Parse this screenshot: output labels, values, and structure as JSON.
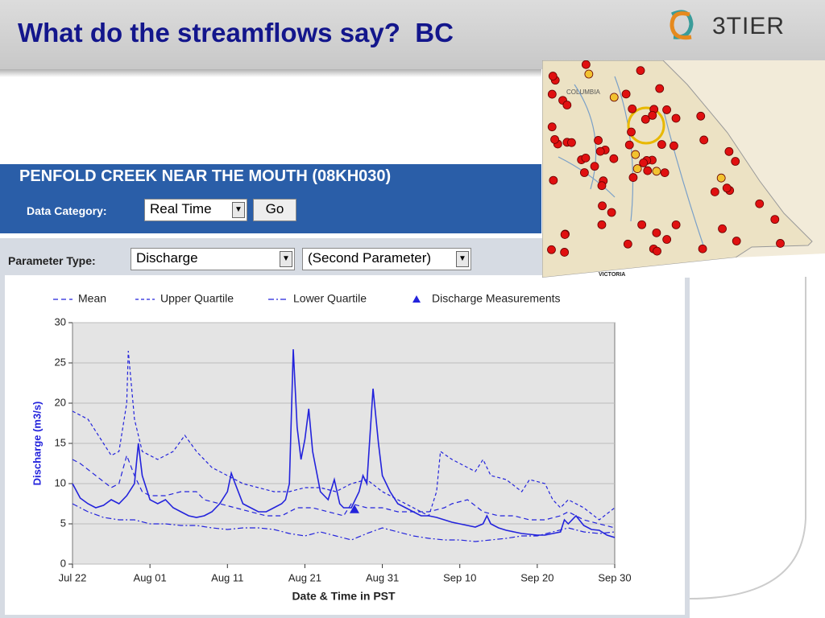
{
  "slide": {
    "title": "What do the streamflows say?  BC",
    "logo": "3TIER"
  },
  "station": {
    "title": "PENFOLD CREEK NEAR THE MOUTH (08KH030)",
    "category_label": "Data Category:",
    "category_value": "Real Time",
    "go": "Go",
    "parameter_label": "Parameter Type:",
    "parameter_value": "Discharge",
    "second_parameter": "(Second Parameter)"
  },
  "map": {
    "labels": [
      "COLUMBIA",
      "VICTORIA"
    ]
  },
  "chart_data": {
    "type": "line",
    "xlabel": "Date & Time in PST",
    "ylabel": "Discharge (m3/s)",
    "xlim": [
      0,
      70
    ],
    "ylim": [
      0,
      30
    ],
    "grid": true,
    "xticks": [
      {
        "value": 0,
        "label": "Jul 22"
      },
      {
        "value": 10,
        "label": "Aug 01"
      },
      {
        "value": 20,
        "label": "Aug 11"
      },
      {
        "value": 30,
        "label": "Aug 21"
      },
      {
        "value": 40,
        "label": "Aug 31"
      },
      {
        "value": 50,
        "label": "Sep 10"
      },
      {
        "value": 60,
        "label": "Sep 20"
      },
      {
        "value": 70,
        "label": "Sep 30"
      }
    ],
    "yticks": [
      0,
      5,
      10,
      15,
      20,
      25,
      30
    ],
    "series": [
      {
        "color": "#2323dc",
        "dash": "none",
        "x": [
          0,
          1,
          2,
          3,
          4,
          5,
          6,
          7,
          8,
          8.5,
          9,
          10,
          11,
          12,
          13,
          14,
          15,
          16,
          17,
          18,
          19,
          20,
          20.5,
          21,
          22,
          23,
          24,
          25,
          26,
          27,
          27.5,
          28,
          28.5,
          29,
          29.5,
          30,
          30.5,
          31,
          32,
          33,
          33.8,
          34.5,
          35,
          36,
          37,
          37.5,
          38,
          38.8,
          39.5,
          40,
          41,
          42,
          43,
          44,
          45,
          46,
          47,
          48,
          49,
          50,
          51,
          52,
          53,
          53.5,
          54,
          55,
          56,
          57,
          58,
          59,
          60,
          61,
          62,
          63,
          63.5,
          64,
          65,
          66,
          67,
          68,
          69,
          70
        ],
        "values": [
          10,
          8.2,
          7.5,
          7,
          7.3,
          8,
          7.5,
          8.5,
          10,
          15,
          11,
          8,
          7.5,
          8,
          7,
          6.5,
          6,
          5.8,
          6,
          6.5,
          7.5,
          9,
          11.3,
          10,
          7.5,
          7,
          6.5,
          6.5,
          7,
          7.5,
          8,
          10,
          26.7,
          17,
          13,
          15.5,
          19.3,
          14,
          9,
          8,
          10.5,
          7.5,
          7,
          7,
          9,
          11,
          10,
          21.8,
          15,
          11,
          9,
          7.5,
          7,
          6.5,
          6,
          6,
          5.8,
          5.5,
          5.2,
          5,
          4.8,
          4.6,
          5,
          6,
          5,
          4.5,
          4.2,
          4,
          3.8,
          3.7,
          3.6,
          3.6,
          3.8,
          4,
          5.5,
          5,
          6,
          4.8,
          4.3,
          4.2,
          3.6,
          3.3
        ]
      },
      {
        "name": "Mean",
        "color": "#2323dc",
        "dash": "6,4",
        "x": [
          0,
          1,
          3,
          5,
          6,
          7,
          8,
          9,
          10,
          12,
          14,
          16,
          17,
          19,
          21,
          23,
          25,
          27,
          29,
          31,
          33,
          35,
          36,
          38,
          40,
          42,
          44,
          46,
          48,
          49,
          51,
          53,
          55,
          57,
          59,
          61,
          63,
          64,
          66,
          68,
          70
        ],
        "values": [
          13,
          12.5,
          11,
          9.5,
          10,
          13.5,
          11,
          9,
          8.5,
          8.5,
          9,
          9,
          8,
          7.5,
          7,
          6.5,
          6,
          6,
          7,
          7,
          6.5,
          6,
          7.5,
          7,
          7,
          6.5,
          6.5,
          6.5,
          7,
          7.5,
          8,
          6.5,
          6,
          6,
          5.5,
          5.5,
          6,
          6.5,
          5.5,
          5,
          4.5
        ]
      },
      {
        "name": "Upper Quartile",
        "color": "#2323dc",
        "dash": "4,3",
        "x": [
          0,
          2,
          4,
          5,
          6,
          7,
          7.2,
          8,
          9,
          11,
          13,
          14.5,
          16,
          18,
          20,
          22,
          24,
          26,
          28,
          30,
          32,
          34,
          36,
          38,
          40,
          42,
          44,
          46,
          47,
          47.5,
          49,
          51,
          52,
          53,
          54,
          56,
          58,
          59,
          61,
          62,
          63,
          64,
          66,
          68,
          70
        ],
        "values": [
          19,
          18,
          15,
          13.5,
          14,
          20,
          26.5,
          18,
          14,
          13,
          14,
          16,
          14,
          12,
          11,
          10,
          9.5,
          9,
          9,
          9.5,
          9.5,
          9,
          10,
          10.5,
          9,
          8,
          7,
          6,
          9,
          14,
          13,
          12,
          11.5,
          13,
          11,
          10.5,
          9,
          10.5,
          10,
          8,
          7,
          8,
          7,
          5.5,
          7
        ]
      },
      {
        "name": "Lower Quartile",
        "color": "#2323dc",
        "dash": "7,3,2,3",
        "x": [
          0,
          2,
          4,
          6,
          8,
          10,
          12,
          14,
          16,
          18,
          20,
          22,
          24,
          26,
          28,
          30,
          32,
          34,
          36,
          38,
          40,
          42,
          44,
          46,
          48,
          50,
          52,
          54,
          56,
          58,
          60,
          62,
          64,
          66,
          68,
          70
        ],
        "values": [
          7.5,
          6.5,
          5.8,
          5.5,
          5.5,
          5,
          5,
          4.8,
          4.8,
          4.5,
          4.3,
          4.5,
          4.5,
          4.3,
          3.8,
          3.5,
          4,
          3.5,
          3,
          3.8,
          4.5,
          4,
          3.5,
          3.2,
          3,
          3,
          2.8,
          3,
          3.2,
          3.5,
          3.5,
          4,
          4.5,
          4,
          3.8,
          4
        ]
      },
      {
        "name": "Discharge Measurements",
        "color": "#2323dc",
        "marker": "triangle",
        "x": [
          36.4
        ],
        "values": [
          6.8
        ]
      }
    ]
  }
}
